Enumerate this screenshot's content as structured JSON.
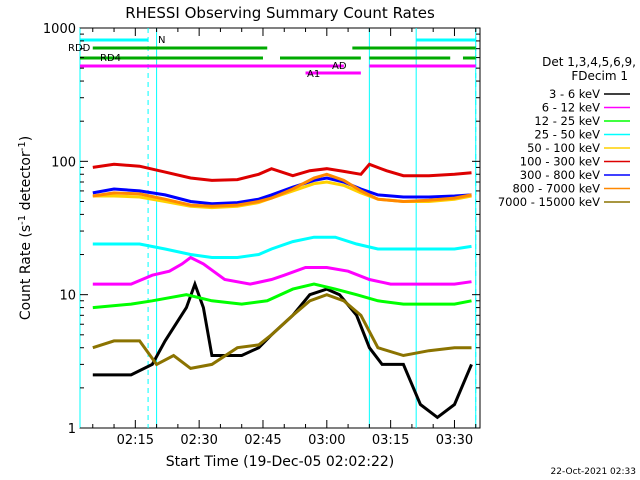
{
  "chart_data": {
    "type": "line",
    "title": "RHESSI Observing Summary Count Rates",
    "xlabel": "Start Time (19-Dec-05 02:02:22)",
    "ylabel_main": "Count Rate (s",
    "ylabel_sup1": "-1",
    "ylabel_mid": " detector",
    "ylabel_sup2": "-1",
    "ylabel_end": ")",
    "yscale": "log",
    "ylim": [
      1,
      1000
    ],
    "xlim_minutes": [
      2,
      96
    ],
    "xticks": [
      {
        "label": "02:15",
        "minutes": 15
      },
      {
        "label": "02:30",
        "minutes": 30
      },
      {
        "label": "02:45",
        "minutes": 45
      },
      {
        "label": "03:00",
        "minutes": 60
      },
      {
        "label": "03:15",
        "minutes": 75
      },
      {
        "label": "03:30",
        "minutes": 90
      }
    ],
    "yticks": [
      {
        "label": "1",
        "value": 1
      },
      {
        "label": "10",
        "value": 10
      },
      {
        "label": "100",
        "value": 100
      },
      {
        "label": "1000",
        "value": 1000
      }
    ],
    "legend_header": [
      "Det 1,3,4,5,6,9,",
      "FDecim 1"
    ],
    "legend_placement": "right",
    "timestamp": "22-Oct-2021 02:33",
    "series": [
      {
        "name": "3 - 6 keV",
        "color": "#000000",
        "points": [
          [
            5,
            2.5
          ],
          [
            14,
            2.5
          ],
          [
            19,
            3
          ],
          [
            22,
            4.5
          ],
          [
            27,
            8
          ],
          [
            29,
            12
          ],
          [
            31,
            8
          ],
          [
            33,
            3.5
          ],
          [
            40,
            3.5
          ],
          [
            44,
            4
          ],
          [
            47,
            5
          ],
          [
            52,
            7
          ],
          [
            56,
            10
          ],
          [
            60,
            11
          ],
          [
            63,
            10
          ],
          [
            67,
            7
          ],
          [
            70,
            4
          ],
          [
            73,
            3
          ],
          [
            78,
            3
          ],
          [
            82,
            1.5
          ],
          [
            86,
            1.2
          ],
          [
            90,
            1.5
          ],
          [
            94,
            3
          ]
        ]
      },
      {
        "name": "6 - 12 keV",
        "color": "#ff00ff",
        "points": [
          [
            5,
            12
          ],
          [
            14,
            12
          ],
          [
            19,
            14
          ],
          [
            23,
            15
          ],
          [
            26,
            17
          ],
          [
            28,
            19
          ],
          [
            31,
            17
          ],
          [
            36,
            13
          ],
          [
            42,
            12
          ],
          [
            47,
            13
          ],
          [
            50,
            14
          ],
          [
            55,
            16
          ],
          [
            60,
            16
          ],
          [
            65,
            15
          ],
          [
            70,
            13
          ],
          [
            75,
            12
          ],
          [
            80,
            12
          ],
          [
            86,
            12
          ],
          [
            90,
            12
          ],
          [
            94,
            12.5
          ]
        ]
      },
      {
        "name": "12 - 25 keV",
        "color": "#00ff00",
        "points": [
          [
            5,
            8
          ],
          [
            14,
            8.5
          ],
          [
            19,
            9
          ],
          [
            27,
            10
          ],
          [
            33,
            9
          ],
          [
            40,
            8.5
          ],
          [
            46,
            9
          ],
          [
            52,
            11
          ],
          [
            57,
            12
          ],
          [
            62,
            11
          ],
          [
            67,
            10
          ],
          [
            72,
            9
          ],
          [
            78,
            8.5
          ],
          [
            86,
            8.5
          ],
          [
            90,
            8.5
          ],
          [
            94,
            9
          ]
        ]
      },
      {
        "name": "25 - 50 keV",
        "color": "#00ffff",
        "points": [
          [
            5,
            24
          ],
          [
            10,
            24
          ],
          [
            16,
            24
          ],
          [
            22,
            22
          ],
          [
            28,
            20
          ],
          [
            33,
            19
          ],
          [
            39,
            19
          ],
          [
            44,
            20
          ],
          [
            47,
            22
          ],
          [
            52,
            25
          ],
          [
            57,
            27
          ],
          [
            62,
            27
          ],
          [
            67,
            24
          ],
          [
            72,
            22
          ],
          [
            78,
            22
          ],
          [
            84,
            22
          ],
          [
            90,
            22
          ],
          [
            94,
            23
          ]
        ]
      },
      {
        "name": "50 - 100 keV",
        "color": "#ffd000",
        "points": [
          [
            5,
            55
          ],
          [
            10,
            55
          ],
          [
            16,
            54
          ],
          [
            22,
            50
          ],
          [
            28,
            46
          ],
          [
            33,
            45
          ],
          [
            39,
            46
          ],
          [
            44,
            49
          ],
          [
            47,
            53
          ],
          [
            52,
            60
          ],
          [
            57,
            68
          ],
          [
            60,
            70
          ],
          [
            64,
            66
          ],
          [
            68,
            58
          ],
          [
            72,
            52
          ],
          [
            78,
            50
          ],
          [
            84,
            50
          ],
          [
            90,
            52
          ],
          [
            94,
            55
          ]
        ]
      },
      {
        "name": "100 - 300 keV",
        "color": "#dd0000",
        "points": [
          [
            5,
            90
          ],
          [
            10,
            95
          ],
          [
            16,
            92
          ],
          [
            22,
            83
          ],
          [
            28,
            75
          ],
          [
            33,
            72
          ],
          [
            39,
            73
          ],
          [
            44,
            80
          ],
          [
            47,
            88
          ],
          [
            52,
            78
          ],
          [
            56,
            85
          ],
          [
            60,
            88
          ],
          [
            64,
            84
          ],
          [
            68,
            80
          ],
          [
            70,
            95
          ],
          [
            74,
            85
          ],
          [
            78,
            78
          ],
          [
            84,
            78
          ],
          [
            90,
            80
          ],
          [
            94,
            82
          ]
        ]
      },
      {
        "name": "300 - 800 keV",
        "color": "#0000ff",
        "points": [
          [
            5,
            58
          ],
          [
            10,
            62
          ],
          [
            16,
            60
          ],
          [
            22,
            56
          ],
          [
            28,
            50
          ],
          [
            33,
            48
          ],
          [
            39,
            49
          ],
          [
            44,
            52
          ],
          [
            47,
            56
          ],
          [
            52,
            64
          ],
          [
            57,
            72
          ],
          [
            60,
            75
          ],
          [
            64,
            70
          ],
          [
            68,
            62
          ],
          [
            72,
            56
          ],
          [
            78,
            54
          ],
          [
            84,
            54
          ],
          [
            90,
            55
          ],
          [
            94,
            56
          ]
        ]
      },
      {
        "name": "800 - 7000 keV",
        "color": "#ff8800",
        "points": [
          [
            5,
            55
          ],
          [
            10,
            58
          ],
          [
            16,
            57
          ],
          [
            22,
            52
          ],
          [
            28,
            47
          ],
          [
            33,
            46
          ],
          [
            39,
            47
          ],
          [
            44,
            50
          ],
          [
            47,
            53
          ],
          [
            52,
            62
          ],
          [
            57,
            75
          ],
          [
            60,
            80
          ],
          [
            64,
            72
          ],
          [
            68,
            60
          ],
          [
            72,
            52
          ],
          [
            78,
            50
          ],
          [
            84,
            51
          ],
          [
            90,
            53
          ],
          [
            94,
            56
          ]
        ]
      },
      {
        "name": "7000 - 15000 keV",
        "color": "#8b7300",
        "points": [
          [
            5,
            4
          ],
          [
            10,
            4.5
          ],
          [
            16,
            4.5
          ],
          [
            20,
            3
          ],
          [
            24,
            3.5
          ],
          [
            28,
            2.8
          ],
          [
            33,
            3
          ],
          [
            39,
            4
          ],
          [
            44,
            4.2
          ],
          [
            47,
            5
          ],
          [
            52,
            7
          ],
          [
            56,
            9
          ],
          [
            60,
            10
          ],
          [
            64,
            9
          ],
          [
            68,
            7
          ],
          [
            72,
            4
          ],
          [
            78,
            3.5
          ],
          [
            84,
            3.8
          ],
          [
            90,
            4
          ],
          [
            94,
            4
          ]
        ]
      }
    ],
    "status_bars": [
      {
        "label": "N",
        "color": "#00ffff"
      },
      {
        "label": "RDD",
        "color": "#00aa00"
      },
      {
        "label": "RD4",
        "color": "#00aa00"
      },
      {
        "label": "AD",
        "color": "#ff00ff"
      },
      {
        "label": "A1",
        "color": "#ff00ff"
      }
    ],
    "vertical_markers_minutes": [
      2,
      20,
      70,
      81,
      95
    ],
    "dashed_markers_minutes": [
      18,
      95
    ]
  }
}
